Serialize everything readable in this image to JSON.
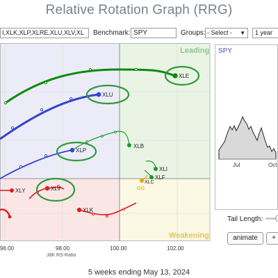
{
  "app": {
    "title": "Relative Rotation Graph (RRG)"
  },
  "toolbar": {
    "symbols_value": "I,XLK,XLP,XLRE,XLU,XLV,XL",
    "benchmark_label": "Benchmark:",
    "benchmark_value": "SPY",
    "groups_label": "Groups:",
    "groups_selected": "- Select -",
    "period_selected": "1 year"
  },
  "chart": {
    "quadrants": {
      "leading": "Leading",
      "weakening": "Weakening"
    },
    "x_axis": {
      "title": "JdK RS-Ratio",
      "ticks": [
        "96.00",
        "98.00",
        "100.00",
        "102.00"
      ]
    },
    "colors": {
      "leading_bg": "#e9f4e5",
      "improving_bg": "#ececf8",
      "lagging_bg": "#fbe6e6",
      "weakening_bg": "#fbf8e4"
    },
    "series": [
      {
        "label": "XLE",
        "color": "#0a8a0a"
      },
      {
        "label": "XLU",
        "color": "#3344cc"
      },
      {
        "label": "XLP",
        "color": "#3344cc"
      },
      {
        "label": "XLB",
        "color": "#1a9a2a"
      },
      {
        "label": "XLI",
        "color": "#1a9a2a"
      },
      {
        "label": "XLF",
        "color": "#1a9a2a"
      },
      {
        "label": "XLC",
        "color": "#e0a800"
      },
      {
        "label": "GG",
        "color": "#e0a800"
      },
      {
        "label": "XLY",
        "color": "#dd1c1c"
      },
      {
        "label": "XLV",
        "color": "#dd1c1c"
      },
      {
        "label": "XLK",
        "color": "#dd1c1c"
      }
    ],
    "highlight_color": "#2e9a38"
  },
  "mini_chart": {
    "symbol": "SPY",
    "x_labels": [
      "Jul",
      "Oct"
    ]
  },
  "controls": {
    "tail_length_label": "Tail Length:",
    "tail_length_fraction": 0.7,
    "animate_label": "animate",
    "plus_label": "+"
  },
  "footer": {
    "caption": "5 weeks ending May 13, 2024"
  }
}
